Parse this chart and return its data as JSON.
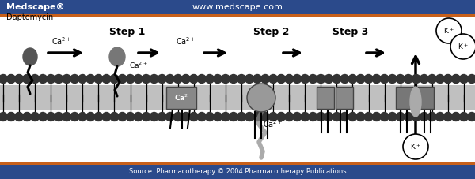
{
  "header_bg": "#2b4a8b",
  "header_orange": "#c8601a",
  "header_logo": "Medscape®",
  "header_text": "www.medscape.com",
  "footer_bg": "#2b4a8b",
  "footer_orange": "#c8601a",
  "footer_text": "Source: Pharmacotherapy © 2004 Pharmacotherapy Publications",
  "bg_color": "#ffffff",
  "diagram_bg": "#ffffff",
  "membrane_interior": "#c0c0c0",
  "dot_color": "#333333",
  "dark_gray": "#555555",
  "mid_gray": "#777777",
  "label_daptomycin": "Daptomycin"
}
